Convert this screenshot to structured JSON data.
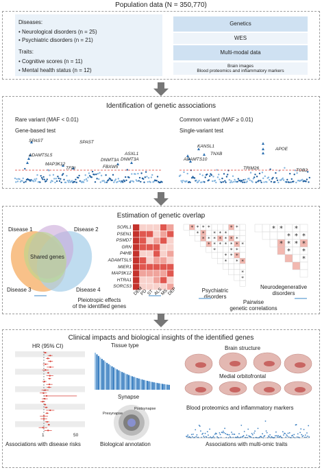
{
  "pop": {
    "title": "Population data (N = 350,770)",
    "diseases_h": "Diseases:",
    "d1": "Neurological disorders (n = 25)",
    "d2": "Psychiatric disorders (n = 21)",
    "traits_h": "Traits:",
    "t1": "Cognitive scores (n = 11)",
    "t2": "Mental health status (n = 12)",
    "gen": "Genetics",
    "wes": "WES",
    "mm": "Multi-modal data",
    "bi": "Brain images",
    "bp": "Blood proteomics and inflammatory markers"
  },
  "assoc": {
    "title": "Identification of genetic associations",
    "rare": "Rare variant (MAF < 0.01)",
    "rare_test": "Gene-based test",
    "common": "Common variant (MAF ≥ 0.01)",
    "common_test": "Single-variant test",
    "genes_rare": [
      "SPAST",
      "ADAMTSL5",
      "SPAST",
      "MAP3K12",
      "TFPI",
      "DNMT3A",
      "FBXW5",
      "ASXL1",
      "DNMT3A"
    ],
    "genes_common": [
      "KANSL1",
      "TNXB",
      "ADAMTS10",
      "APOE",
      "TRIM26",
      "TOB2"
    ]
  },
  "overlap": {
    "title": "Estimation of genetic overlap",
    "d1": "Disease 1",
    "d2": "Disease 2",
    "d3": "Disease 3",
    "d4": "Disease 4",
    "shared": "Shared genes",
    "genes": [
      "SORL1",
      "PSEN1",
      "PSMD7",
      "GRN",
      "P4HB",
      "ADAMTSL5",
      "MIER1",
      "MAP3K12",
      "HTRA1",
      "SORCS3"
    ],
    "cols": [
      "DEM",
      "PD",
      "ST",
      "ALS",
      "MS",
      "DEP"
    ],
    "pleio1": "Pleiotropic effects",
    "pleio2": "of the identified genes",
    "psych1": "Psychiatric",
    "psych2": "disorders",
    "neuro1": "Neurodegenerative",
    "neuro2": "disorders",
    "pair1": "Pairwise",
    "pair2": "genetic correlations"
  },
  "clin": {
    "title": "Clinical impacts and biological insights of the identified genes",
    "hr": "HR (95% CI)",
    "tick1": "1",
    "tick50": "50",
    "risk": "Associations with disease risks",
    "tissue": "Tissue type",
    "synapse": "Synapse",
    "presyn": "Presynapse",
    "postsyn": "Postsynapse",
    "bioann": "Biological annotation",
    "brain": "Brain structure",
    "mof": "Medial orbitofrontal",
    "blood": "Blood proteomics and inflammatory markers",
    "multi": "Associations with multi-omic traits"
  },
  "colors": {
    "blue": "#3a7fc1",
    "red": "#d9392f",
    "venn1": "#f6b26b",
    "venn2": "#c9a8d8",
    "venn3": "#b7d88a",
    "venn4": "#a9d0ea"
  }
}
